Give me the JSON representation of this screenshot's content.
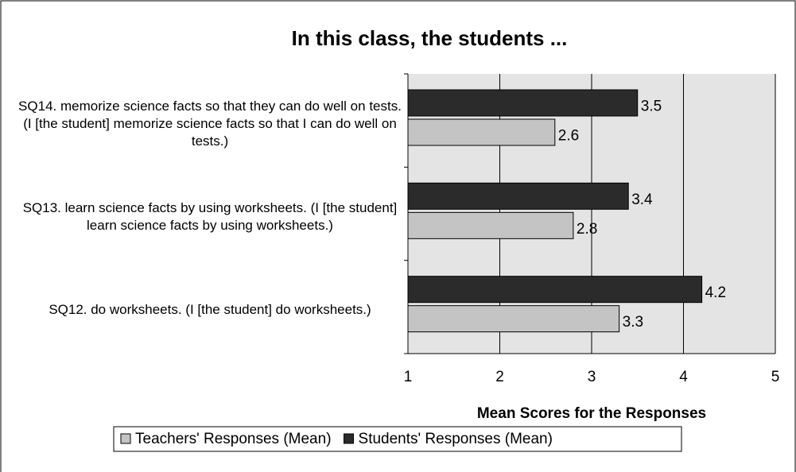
{
  "chart_data": {
    "type": "bar",
    "orientation": "horizontal",
    "title": "In this class, the students ...",
    "x_label": "Mean Scores for the Responses",
    "categories": [
      "SQ14. memorize science facts so that they can do well on tests. (I [the student] memorize science facts so that I can do well on tests.)",
      "SQ13. learn science facts by using worksheets. (I [the student] learn science facts by using worksheets.)",
      "SQ12. do worksheets. (I [the student] do worksheets.)"
    ],
    "series": [
      {
        "name": "Teachers' Responses (Mean)",
        "color": "#c4c4c4",
        "values": [
          2.6,
          2.8,
          3.3
        ]
      },
      {
        "name": "Students' Responses (Mean)",
        "color": "#2b2b2b",
        "values": [
          3.5,
          3.4,
          4.2
        ]
      }
    ],
    "xlim": [
      1,
      5
    ],
    "xticks": [
      1,
      2,
      3,
      4,
      5
    ],
    "grid": true,
    "legend": "bottom"
  }
}
